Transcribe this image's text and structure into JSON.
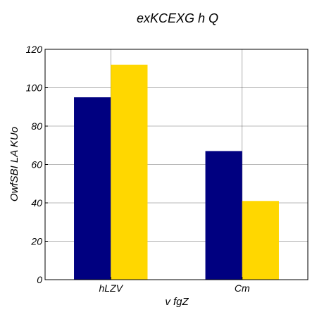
{
  "chart_data": {
    "type": "bar",
    "title": "exKCEXG h Q",
    "xlabel": "v fgZ",
    "ylabel": "OwfSBI LA KUo",
    "categories": [
      "hLZV",
      "Cm"
    ],
    "series": [
      {
        "values": [
          95,
          67
        ],
        "color": "#000080"
      },
      {
        "values": [
          112,
          41
        ],
        "color": "#FFD700"
      }
    ],
    "ylim": [
      0,
      120
    ],
    "yticks": [
      0,
      20,
      40,
      60,
      80,
      100,
      120
    ],
    "grid": true,
    "legend": "none"
  }
}
